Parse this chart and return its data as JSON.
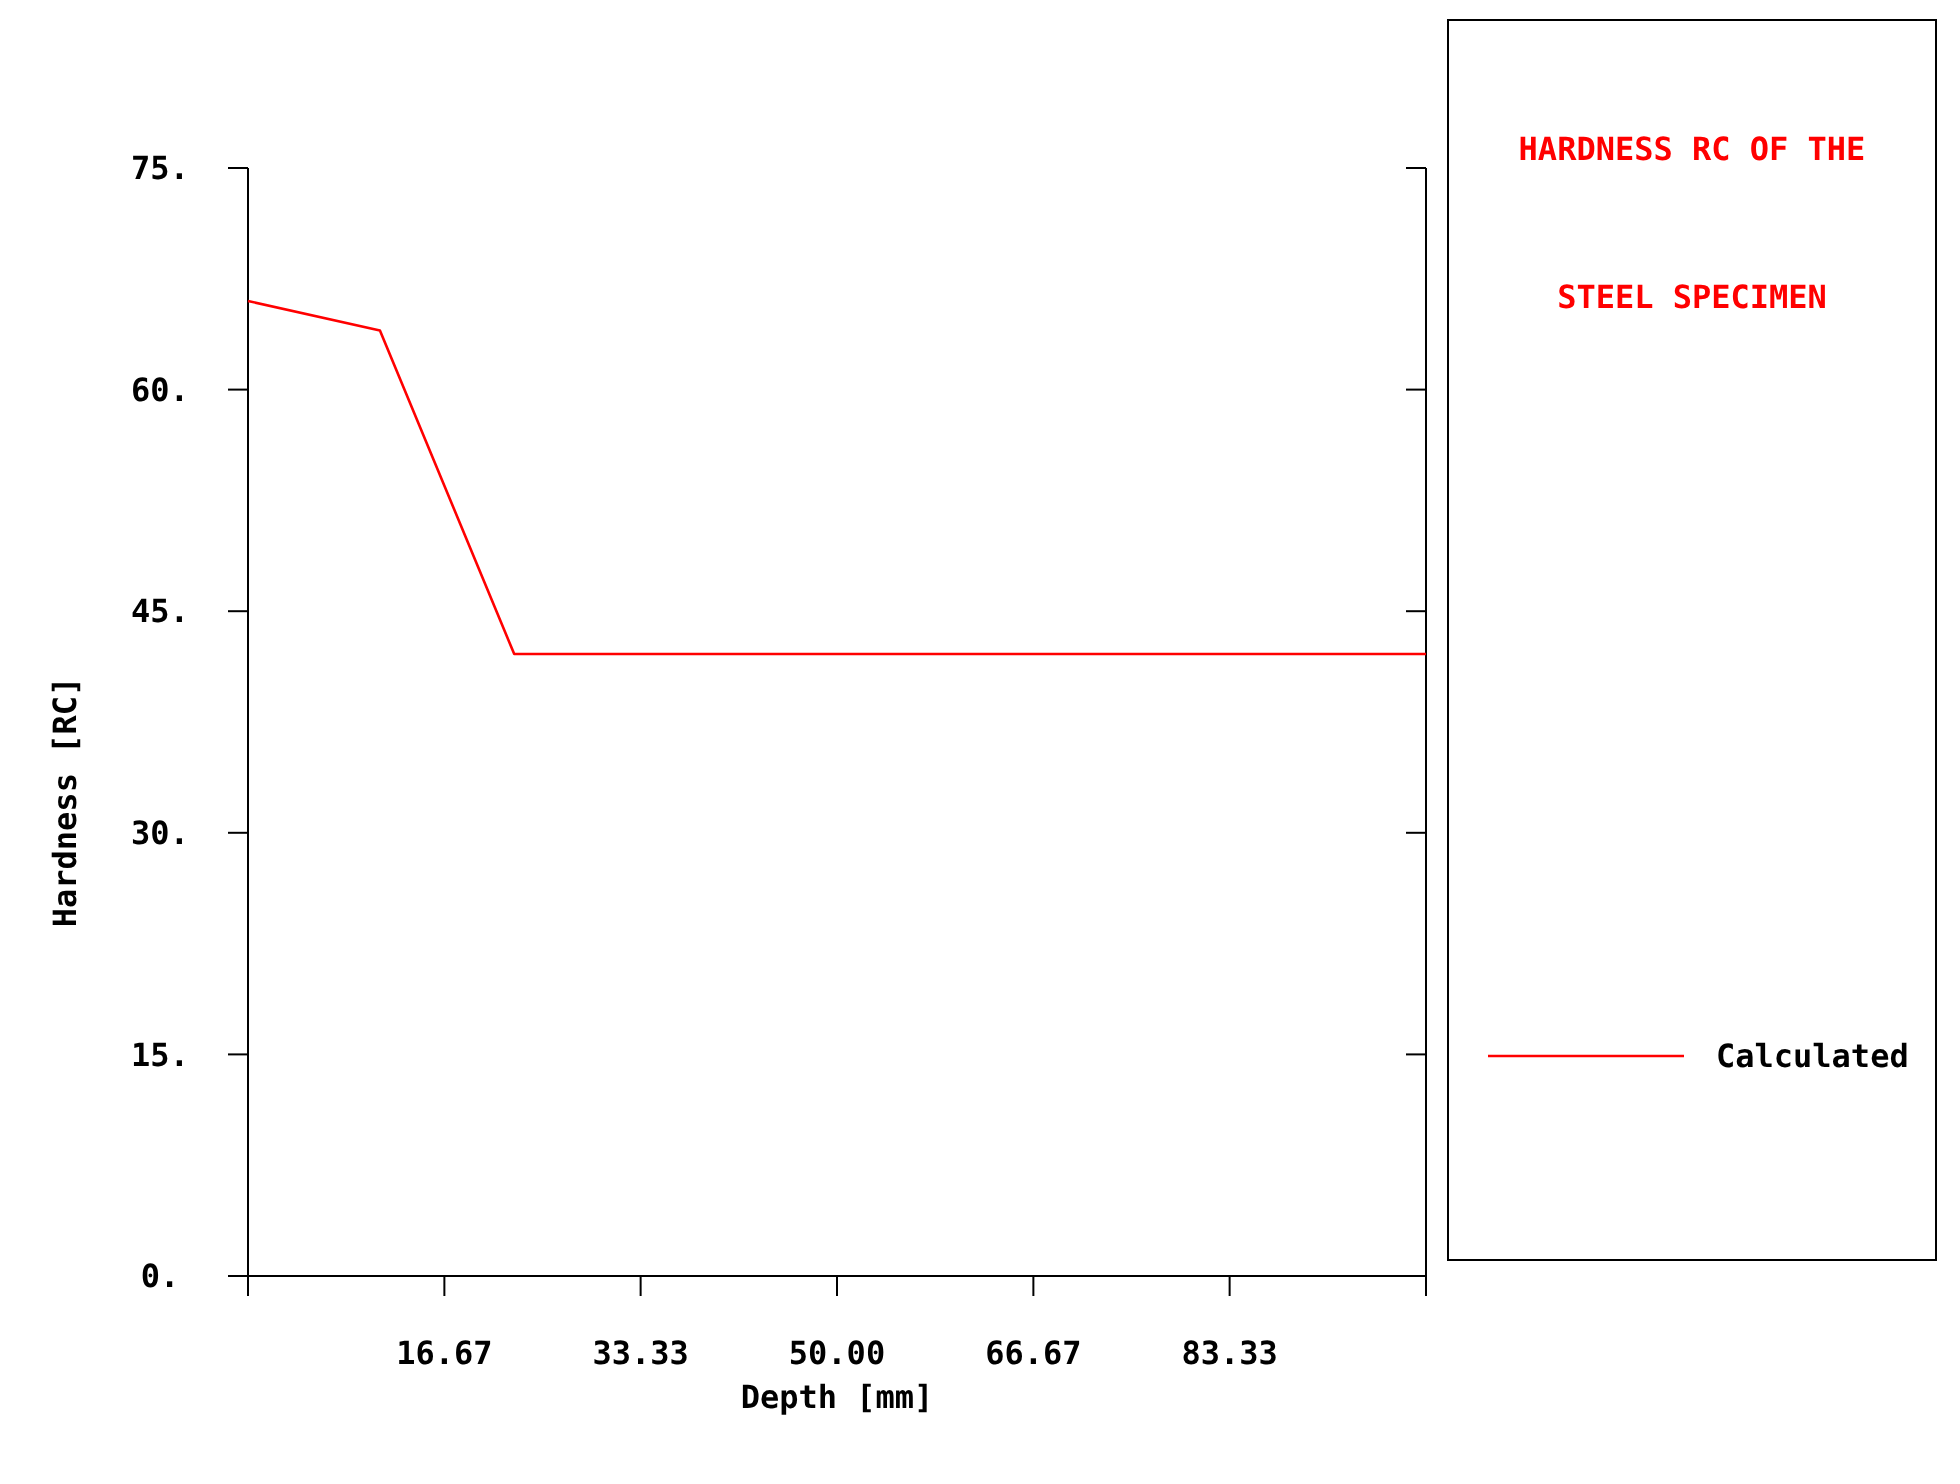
{
  "chart_data": {
    "type": "line",
    "title": "HARDNESS RC OF THE STEEL SPECIMEN",
    "xlabel": "Depth [mm]",
    "ylabel": "Hardness [RC]",
    "x": [
      0,
      11.2,
      22.6,
      100
    ],
    "series": [
      {
        "name": "Calculated",
        "color": "#ff0000",
        "values": [
          66.0,
          64.0,
          42.1,
          42.1
        ]
      }
    ],
    "xlim": [
      0,
      100
    ],
    "ylim": [
      0,
      75
    ],
    "xticks": [
      {
        "value": 0,
        "label": null
      },
      {
        "value": 16.67,
        "label": "16.67"
      },
      {
        "value": 33.33,
        "label": "33.33"
      },
      {
        "value": 50,
        "label": "50.00"
      },
      {
        "value": 66.67,
        "label": "66.67"
      },
      {
        "value": 83.33,
        "label": "83.33"
      },
      {
        "value": 100,
        "label": null
      }
    ],
    "yticks": [
      {
        "value": 0,
        "label": "0."
      },
      {
        "value": 15,
        "label": "15."
      },
      {
        "value": 30,
        "label": "30."
      },
      {
        "value": 45,
        "label": "45."
      },
      {
        "value": 60,
        "label": "60."
      },
      {
        "value": 75,
        "label": "75."
      }
    ],
    "grid": false,
    "legend": "right",
    "marker": "none",
    "line_style": "solid"
  }
}
